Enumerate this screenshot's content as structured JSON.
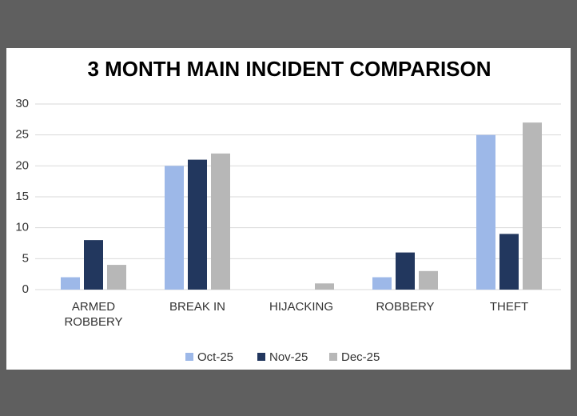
{
  "chart_data": {
    "type": "bar",
    "title": "3 MONTH MAIN INCIDENT COMPARISON",
    "categories": [
      "ARMED ROBBERY",
      "BREAK IN",
      "HIJACKING",
      "ROBBERY",
      "THEFT"
    ],
    "series": [
      {
        "name": "Oct-25",
        "color": "#9db8e8",
        "values": [
          2,
          20,
          0,
          2,
          25
        ]
      },
      {
        "name": "Nov-25",
        "color": "#22375e",
        "values": [
          8,
          21,
          0,
          6,
          9
        ]
      },
      {
        "name": "Dec-25",
        "color": "#b7b7b7",
        "values": [
          4,
          22,
          1,
          3,
          27
        ]
      }
    ],
    "ylim": [
      0,
      30
    ],
    "yticks": [
      0,
      5,
      10,
      15,
      20,
      25,
      30
    ],
    "grid": true,
    "legend": "bottom"
  }
}
